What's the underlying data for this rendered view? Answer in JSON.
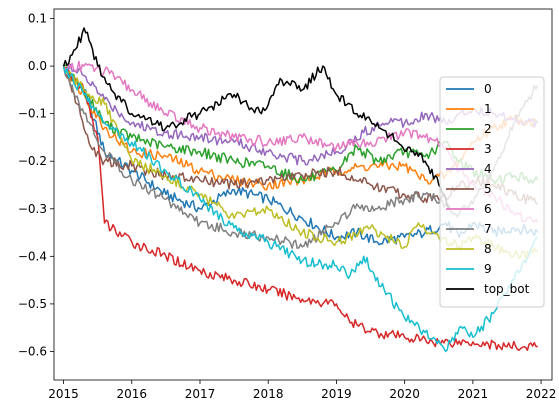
{
  "chart_data": {
    "type": "line",
    "title": "",
    "xlabel": "",
    "ylabel": "",
    "xlim": [
      2014.86,
      2022.16
    ],
    "ylim": [
      -0.66,
      0.12
    ],
    "xticks": [
      2015,
      2016,
      2017,
      2018,
      2019,
      2020,
      2021,
      2022
    ],
    "yticks": [
      0.1,
      0.0,
      -0.1,
      -0.2,
      -0.3,
      -0.4,
      -0.5,
      -0.6
    ],
    "ytick_labels": [
      "0.1",
      "0.0",
      "−0.1",
      "−0.2",
      "−0.3",
      "−0.4",
      "−0.5",
      "−0.6"
    ],
    "grid": false,
    "legend_position": "right",
    "series": [
      {
        "name": "0",
        "color": "#1f77b4",
        "points": [
          [
            2015.0,
            0.0
          ],
          [
            2015.3,
            -0.05
          ],
          [
            2015.6,
            -0.18
          ],
          [
            2016.0,
            -0.22
          ],
          [
            2016.5,
            -0.27
          ],
          [
            2017.0,
            -0.3
          ],
          [
            2017.5,
            -0.26
          ],
          [
            2018.0,
            -0.28
          ],
          [
            2018.5,
            -0.32
          ],
          [
            2019.0,
            -0.36
          ],
          [
            2019.3,
            -0.35
          ],
          [
            2019.6,
            -0.37
          ],
          [
            2020.0,
            -0.36
          ],
          [
            2020.3,
            -0.35
          ],
          [
            2020.6,
            -0.33
          ],
          [
            2020.8,
            -0.36
          ],
          [
            2021.0,
            -0.33
          ],
          [
            2021.3,
            -0.35
          ],
          [
            2021.6,
            -0.34
          ],
          [
            2021.95,
            -0.35
          ]
        ]
      },
      {
        "name": "1",
        "color": "#ff7f0e",
        "points": [
          [
            2015.0,
            0.0
          ],
          [
            2015.3,
            -0.06
          ],
          [
            2015.6,
            -0.13
          ],
          [
            2016.0,
            -0.18
          ],
          [
            2016.5,
            -0.19
          ],
          [
            2017.0,
            -0.22
          ],
          [
            2017.5,
            -0.24
          ],
          [
            2018.0,
            -0.25
          ],
          [
            2018.5,
            -0.24
          ],
          [
            2019.0,
            -0.22
          ],
          [
            2019.5,
            -0.21
          ],
          [
            2020.0,
            -0.21
          ],
          [
            2020.3,
            -0.24
          ],
          [
            2020.6,
            -0.23
          ],
          [
            2020.8,
            -0.2
          ],
          [
            2021.0,
            -0.16
          ],
          [
            2021.3,
            -0.13
          ],
          [
            2021.6,
            -0.11
          ],
          [
            2021.95,
            -0.12
          ]
        ]
      },
      {
        "name": "2",
        "color": "#2ca02c",
        "points": [
          [
            2015.0,
            0.0
          ],
          [
            2015.3,
            -0.05
          ],
          [
            2015.6,
            -0.12
          ],
          [
            2016.0,
            -0.15
          ],
          [
            2016.5,
            -0.17
          ],
          [
            2017.0,
            -0.18
          ],
          [
            2017.5,
            -0.2
          ],
          [
            2018.0,
            -0.21
          ],
          [
            2018.5,
            -0.24
          ],
          [
            2019.0,
            -0.22
          ],
          [
            2019.3,
            -0.17
          ],
          [
            2019.6,
            -0.2
          ],
          [
            2020.0,
            -0.18
          ],
          [
            2020.3,
            -0.19
          ],
          [
            2020.6,
            -0.16
          ],
          [
            2020.8,
            -0.2
          ],
          [
            2021.0,
            -0.22
          ],
          [
            2021.3,
            -0.24
          ],
          [
            2021.6,
            -0.23
          ],
          [
            2021.95,
            -0.24
          ]
        ]
      },
      {
        "name": "3",
        "color": "#d62728",
        "points": [
          [
            2015.0,
            0.0
          ],
          [
            2015.3,
            -0.05
          ],
          [
            2015.5,
            -0.15
          ],
          [
            2015.6,
            -0.33
          ],
          [
            2016.0,
            -0.37
          ],
          [
            2016.5,
            -0.4
          ],
          [
            2017.0,
            -0.43
          ],
          [
            2017.5,
            -0.45
          ],
          [
            2018.0,
            -0.47
          ],
          [
            2018.5,
            -0.49
          ],
          [
            2019.0,
            -0.5
          ],
          [
            2019.2,
            -0.54
          ],
          [
            2019.6,
            -0.56
          ],
          [
            2020.0,
            -0.57
          ],
          [
            2020.5,
            -0.58
          ],
          [
            2021.0,
            -0.58
          ],
          [
            2021.5,
            -0.59
          ],
          [
            2021.95,
            -0.59
          ]
        ]
      },
      {
        "name": "4",
        "color": "#9467bd",
        "points": [
          [
            2015.0,
            0.0
          ],
          [
            2015.3,
            -0.02
          ],
          [
            2015.6,
            -0.07
          ],
          [
            2016.0,
            -0.12
          ],
          [
            2016.5,
            -0.14
          ],
          [
            2017.0,
            -0.15
          ],
          [
            2017.5,
            -0.16
          ],
          [
            2018.0,
            -0.18
          ],
          [
            2018.5,
            -0.2
          ],
          [
            2019.0,
            -0.18
          ],
          [
            2019.4,
            -0.14
          ],
          [
            2019.8,
            -0.11
          ],
          [
            2020.0,
            -0.12
          ],
          [
            2020.3,
            -0.1
          ],
          [
            2020.6,
            -0.12
          ],
          [
            2020.8,
            -0.1
          ],
          [
            2021.0,
            -0.09
          ],
          [
            2021.3,
            -0.1
          ],
          [
            2021.6,
            -0.11
          ],
          [
            2021.95,
            -0.12
          ]
        ]
      },
      {
        "name": "5",
        "color": "#8c564b",
        "points": [
          [
            2015.0,
            0.0
          ],
          [
            2015.2,
            -0.08
          ],
          [
            2015.4,
            -0.17
          ],
          [
            2015.6,
            -0.2
          ],
          [
            2016.0,
            -0.21
          ],
          [
            2016.5,
            -0.23
          ],
          [
            2017.0,
            -0.24
          ],
          [
            2017.5,
            -0.25
          ],
          [
            2018.0,
            -0.24
          ],
          [
            2018.5,
            -0.23
          ],
          [
            2019.0,
            -0.22
          ],
          [
            2019.5,
            -0.25
          ],
          [
            2020.0,
            -0.27
          ],
          [
            2020.5,
            -0.28
          ],
          [
            2021.0,
            -0.24
          ],
          [
            2021.3,
            -0.25
          ],
          [
            2021.6,
            -0.27
          ],
          [
            2021.95,
            -0.29
          ]
        ]
      },
      {
        "name": "6",
        "color": "#e377c2",
        "points": [
          [
            2015.0,
            0.0
          ],
          [
            2015.3,
            0.0
          ],
          [
            2015.6,
            -0.01
          ],
          [
            2016.0,
            -0.05
          ],
          [
            2016.5,
            -0.1
          ],
          [
            2017.0,
            -0.13
          ],
          [
            2017.5,
            -0.15
          ],
          [
            2018.0,
            -0.16
          ],
          [
            2018.5,
            -0.15
          ],
          [
            2019.0,
            -0.17
          ],
          [
            2019.5,
            -0.16
          ],
          [
            2020.0,
            -0.14
          ],
          [
            2020.3,
            -0.15
          ],
          [
            2020.6,
            -0.17
          ],
          [
            2020.8,
            -0.22
          ],
          [
            2021.0,
            -0.25
          ],
          [
            2021.3,
            -0.27
          ],
          [
            2021.6,
            -0.31
          ],
          [
            2021.95,
            -0.33
          ]
        ]
      },
      {
        "name": "7",
        "color": "#7f7f7f",
        "points": [
          [
            2015.0,
            0.0
          ],
          [
            2015.3,
            -0.1
          ],
          [
            2015.6,
            -0.18
          ],
          [
            2016.0,
            -0.24
          ],
          [
            2016.5,
            -0.28
          ],
          [
            2017.0,
            -0.33
          ],
          [
            2017.5,
            -0.35
          ],
          [
            2018.0,
            -0.36
          ],
          [
            2018.5,
            -0.38
          ],
          [
            2019.0,
            -0.33
          ],
          [
            2019.3,
            -0.29
          ],
          [
            2019.6,
            -0.3
          ],
          [
            2020.0,
            -0.28
          ],
          [
            2020.3,
            -0.27
          ],
          [
            2020.6,
            -0.29
          ],
          [
            2020.8,
            -0.31
          ],
          [
            2021.0,
            -0.29
          ],
          [
            2021.3,
            -0.22
          ],
          [
            2021.6,
            -0.12
          ],
          [
            2021.95,
            -0.04
          ]
        ]
      },
      {
        "name": "8",
        "color": "#bcbd22",
        "points": [
          [
            2015.0,
            0.0
          ],
          [
            2015.3,
            -0.05
          ],
          [
            2015.6,
            -0.08
          ],
          [
            2016.0,
            -0.2
          ],
          [
            2016.5,
            -0.23
          ],
          [
            2017.0,
            -0.27
          ],
          [
            2017.5,
            -0.32
          ],
          [
            2018.0,
            -0.3
          ],
          [
            2018.5,
            -0.35
          ],
          [
            2019.0,
            -0.37
          ],
          [
            2019.5,
            -0.34
          ],
          [
            2020.0,
            -0.38
          ],
          [
            2020.2,
            -0.33
          ],
          [
            2020.5,
            -0.36
          ],
          [
            2020.8,
            -0.38
          ],
          [
            2021.0,
            -0.36
          ],
          [
            2021.3,
            -0.38
          ],
          [
            2021.6,
            -0.4
          ],
          [
            2021.95,
            -0.39
          ]
        ]
      },
      {
        "name": "9",
        "color": "#17becf",
        "points": [
          [
            2015.0,
            0.0
          ],
          [
            2015.3,
            -0.06
          ],
          [
            2015.6,
            -0.12
          ],
          [
            2016.0,
            -0.16
          ],
          [
            2016.5,
            -0.22
          ],
          [
            2017.0,
            -0.28
          ],
          [
            2017.5,
            -0.34
          ],
          [
            2018.0,
            -0.37
          ],
          [
            2018.5,
            -0.41
          ],
          [
            2019.0,
            -0.42
          ],
          [
            2019.2,
            -0.44
          ],
          [
            2019.4,
            -0.4
          ],
          [
            2019.7,
            -0.47
          ],
          [
            2020.0,
            -0.53
          ],
          [
            2020.3,
            -0.56
          ],
          [
            2020.6,
            -0.6
          ],
          [
            2020.8,
            -0.55
          ],
          [
            2021.0,
            -0.57
          ],
          [
            2021.3,
            -0.52
          ],
          [
            2021.6,
            -0.45
          ],
          [
            2021.95,
            -0.36
          ]
        ]
      },
      {
        "name": "top_bot",
        "color": "#000000",
        "points": [
          [
            2015.0,
            0.0
          ],
          [
            2015.2,
            0.04
          ],
          [
            2015.3,
            0.08
          ],
          [
            2015.5,
            0.0
          ],
          [
            2015.7,
            -0.05
          ],
          [
            2016.0,
            -0.1
          ],
          [
            2016.5,
            -0.13
          ],
          [
            2017.0,
            -0.1
          ],
          [
            2017.5,
            -0.06
          ],
          [
            2017.9,
            -0.1
          ],
          [
            2018.2,
            -0.03
          ],
          [
            2018.5,
            -0.05
          ],
          [
            2018.8,
            0.0
          ],
          [
            2019.0,
            -0.06
          ],
          [
            2019.3,
            -0.1
          ],
          [
            2019.6,
            -0.12
          ],
          [
            2019.9,
            -0.16
          ],
          [
            2020.1,
            -0.18
          ],
          [
            2020.3,
            -0.2
          ],
          [
            2020.5,
            -0.25
          ],
          [
            2020.65,
            -0.3
          ]
        ]
      }
    ]
  }
}
